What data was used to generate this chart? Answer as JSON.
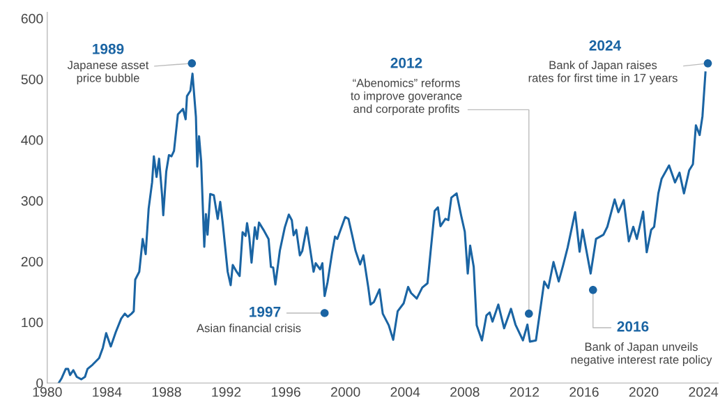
{
  "chart_data": {
    "type": "line",
    "xlim": [
      1980,
      2025
    ],
    "ylim": [
      0,
      610
    ],
    "xticks": [
      1980,
      1984,
      1988,
      1992,
      1996,
      2000,
      2004,
      2008,
      2012,
      2016,
      2020,
      2024
    ],
    "yticks": [
      0,
      100,
      200,
      300,
      400,
      500,
      600
    ],
    "grid": false,
    "legend": false,
    "marker": "none",
    "line_style": "solid",
    "annotations": [
      "1989",
      {
        "text": "Japanese asset\nprice bubble",
        "x": 1989.7,
        "y": 526
      },
      {
        "text": "1997",
        "x": 1998.6,
        "y": 115
      },
      "Asian financial crisis",
      "2012",
      {
        "text": "“Abenomics” reforms\nto improve goverance\nand corporate profits",
        "x": 2012.3,
        "y": 114
      },
      {
        "text": "2016",
        "x": 2016.6,
        "y": 153
      },
      "Bank of Japan unveils\nnegative interest rate policy",
      "2024",
      {
        "text": "Bank of Japan raises\nrates for first time in 17 years",
        "x": 2024.3,
        "y": 526
      }
    ],
    "series": [
      {
        "type": "scatter",
        "marker": "circle",
        "color": "#1a64a3",
        "x": [
          1989.7,
          1998.6,
          2012.3,
          2016.6,
          2024.3
        ],
        "values": [
          526,
          115,
          114,
          153,
          526
        ]
      },
      {
        "color": "#1a64a3",
        "x": [
          1980.77,
          1980.97,
          1981.24,
          1981.4,
          1981.53,
          1981.75,
          1981.98,
          1982.28,
          1982.53,
          1982.7,
          1983.04,
          1983.48,
          1983.73,
          1983.95,
          1984.26,
          1984.6,
          1984.96,
          1985.2,
          1985.4,
          1985.65,
          1985.8,
          1985.9,
          1986.17,
          1986.4,
          1986.6,
          1986.8,
          1987.03,
          1987.15,
          1987.33,
          1987.5,
          1987.7,
          1987.78,
          1987.98,
          1988.16,
          1988.33,
          1988.5,
          1988.76,
          1989.1,
          1989.28,
          1989.37,
          1989.6,
          1989.74,
          1989.97,
          1990.06,
          1990.18,
          1990.32,
          1990.53,
          1990.64,
          1990.75,
          1990.93,
          1991.17,
          1991.43,
          1991.6,
          1991.76,
          1992.1,
          1992.3,
          1992.44,
          1992.7,
          1992.9,
          1993.1,
          1993.3,
          1993.4,
          1993.55,
          1993.7,
          1993.92,
          1994.07,
          1994.2,
          1994.5,
          1994.84,
          1995,
          1995.15,
          1995.3,
          1995.6,
          1995.93,
          1996.2,
          1996.4,
          1996.52,
          1996.7,
          1996.94,
          1997.1,
          1997.4,
          1997.6,
          1997.86,
          1998,
          1998.3,
          1998.45,
          1998.6,
          1998.8,
          1999.1,
          1999.3,
          1999.45,
          1999.98,
          2000.2,
          2000.44,
          2000.67,
          2000.98,
          2001.2,
          2001.53,
          2001.68,
          2001.9,
          2002.28,
          2002.5,
          2002.9,
          2003.2,
          2003.5,
          2003.9,
          2004.2,
          2004.4,
          2004.78,
          2005.15,
          2005.5,
          2005.7,
          2005.98,
          2006.2,
          2006.37,
          2006.7,
          2006.9,
          2007.1,
          2007.45,
          2007.76,
          2008,
          2008.2,
          2008.36,
          2008.6,
          2008.8,
          2009.15,
          2009.45,
          2009.67,
          2009.86,
          2010.25,
          2010.64,
          2011.1,
          2011.4,
          2011.9,
          2012.2,
          2012.37,
          2012.77,
          2013.33,
          2013.6,
          2013.95,
          2014.3,
          2014.6,
          2014.9,
          2015.4,
          2015.7,
          2015.9,
          2016.44,
          2016.8,
          2017.3,
          2017.56,
          2018.05,
          2018.3,
          2018.66,
          2019,
          2019.3,
          2019.54,
          2019.96,
          2020.2,
          2020.5,
          2020.7,
          2020.98,
          2021.2,
          2021.7,
          2022.1,
          2022.4,
          2022.7,
          2023.05,
          2023.3,
          2023.5,
          2023.75,
          2023.94,
          2024.14
        ],
        "values": [
          0,
          8,
          23,
          23,
          13,
          21,
          10,
          6,
          10,
          23,
          30,
          41,
          58,
          82,
          60,
          84,
          106,
          114,
          109,
          114,
          118,
          170,
          183,
          237,
          212,
          287,
          330,
          373,
          339,
          369,
          309,
          276,
          348,
          375,
          373,
          382,
          442,
          451,
          434,
          472,
          481,
          509,
          438,
          356,
          406,
          365,
          224,
          278,
          244,
          311,
          309,
          270,
          298,
          265,
          183,
          161,
          194,
          183,
          176,
          248,
          242,
          263,
          240,
          198,
          256,
          237,
          264,
          252,
          237,
          191,
          190,
          162,
          218,
          256,
          277,
          268,
          243,
          252,
          210,
          217,
          256,
          225,
          183,
          197,
          187,
          197,
          143,
          166,
          214,
          241,
          237,
          273,
          270,
          244,
          218,
          195,
          210,
          157,
          129,
          133,
          154,
          114,
          95,
          71,
          118,
          131,
          158,
          148,
          139,
          157,
          164,
          214,
          283,
          289,
          258,
          270,
          268,
          305,
          312,
          275,
          249,
          180,
          226,
          191,
          95,
          70,
          111,
          116,
          101,
          129,
          90,
          122,
          96,
          70,
          96,
          68,
          70,
          167,
          156,
          199,
          167,
          194,
          223,
          281,
          216,
          252,
          180,
          237,
          244,
          257,
          302,
          281,
          301,
          233,
          257,
          237,
          282,
          215,
          252,
          257,
          312,
          336,
          358,
          330,
          346,
          312,
          350,
          360,
          424,
          408,
          439,
          511
        ]
      }
    ]
  }
}
